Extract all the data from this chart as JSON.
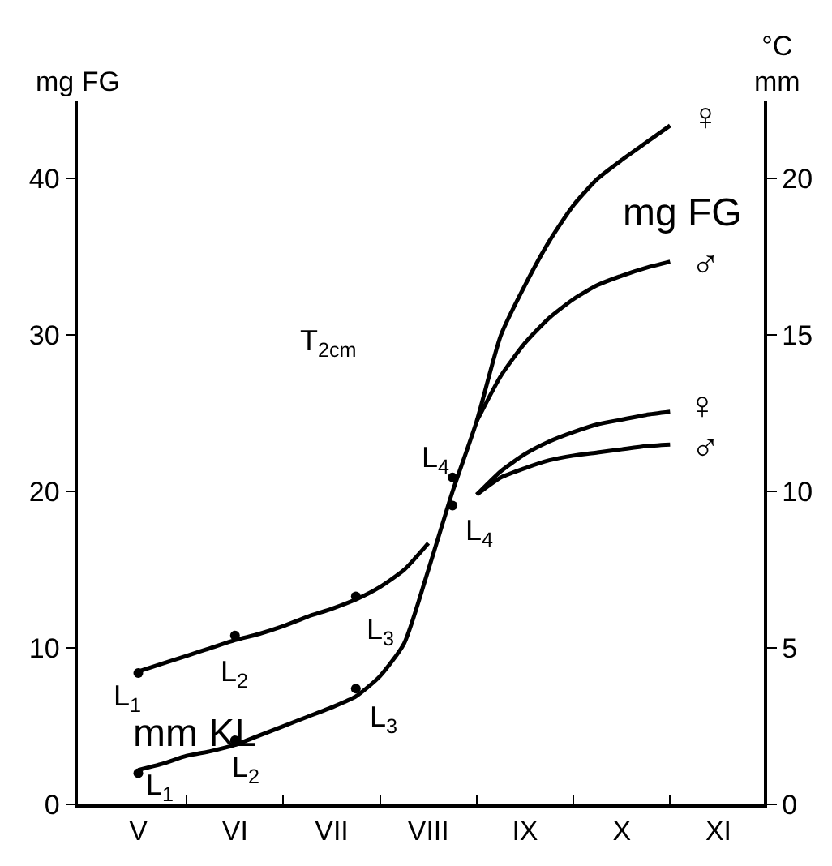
{
  "chart_data": {
    "type": "line",
    "ylabel": "mg FG",
    "y2label": "°C\nmm",
    "categories": [
      null,
      "V",
      null,
      null,
      null,
      "VI",
      null,
      null,
      null,
      "VII",
      null,
      null,
      null,
      "VIII",
      null,
      null,
      null,
      "IX",
      null,
      null,
      null,
      "X",
      null,
      null,
      null,
      "XI",
      null
    ],
    "ylim": [
      0,
      45
    ],
    "yticks": [
      0,
      10,
      20,
      30,
      40
    ],
    "y2lim": [
      0,
      22.5
    ],
    "y2ticks": [
      0,
      5,
      10,
      15,
      20
    ],
    "series": [
      {
        "axis": "y2",
        "color": "#000000",
        "values": [
          null,
          4.25,
          4.5,
          4.75,
          5.0,
          5.25,
          5.45,
          5.7,
          6.0,
          6.25,
          6.55,
          6.95,
          7.5,
          8.35,
          null,
          null,
          null,
          null,
          null,
          null,
          null,
          null,
          null,
          null,
          null,
          null,
          null
        ]
      },
      {
        "color": "#000000",
        "values": [
          null,
          2.2,
          2.6,
          3.1,
          3.4,
          3.8,
          4.4,
          5.0,
          5.6,
          6.2,
          6.9,
          8.2,
          10.3,
          15.0,
          20.0,
          24.5,
          30.0,
          33.2,
          36.0,
          38.3,
          40.0,
          41.2,
          42.3,
          43.4,
          null,
          null,
          null
        ]
      },
      {
        "color": "#000000",
        "values": [
          null,
          null,
          null,
          null,
          null,
          null,
          null,
          null,
          null,
          null,
          null,
          null,
          null,
          null,
          null,
          24.5,
          27.4,
          29.5,
          31.1,
          32.3,
          33.2,
          33.8,
          34.3,
          34.7,
          null,
          null,
          null
        ]
      },
      {
        "axis": "y2",
        "color": "#000000",
        "values": [
          null,
          null,
          null,
          null,
          null,
          null,
          null,
          null,
          null,
          null,
          null,
          null,
          null,
          null,
          null,
          9.9,
          10.65,
          11.2,
          11.6,
          11.9,
          12.15,
          12.3,
          12.45,
          12.55,
          null,
          null,
          null
        ]
      },
      {
        "axis": "y2",
        "color": "#000000",
        "values": [
          null,
          null,
          null,
          null,
          null,
          null,
          null,
          null,
          null,
          null,
          null,
          null,
          null,
          null,
          null,
          9.9,
          10.45,
          10.75,
          11.0,
          11.15,
          11.25,
          11.35,
          11.45,
          11.5,
          null,
          null,
          null
        ]
      },
      {
        "type": "scatter",
        "marker": "circle",
        "color": "#000000",
        "values": [
          null,
          2.0,
          null,
          null,
          null,
          4.1,
          null,
          null,
          null,
          null,
          7.4,
          null,
          null,
          null,
          20.9,
          null,
          null,
          null,
          null,
          null,
          null,
          null,
          null,
          null,
          null,
          null,
          null
        ]
      },
      {
        "type": "scatter",
        "axis": "y2",
        "marker": "circle",
        "color": "#000000",
        "values": [
          null,
          4.2,
          null,
          null,
          null,
          5.4,
          null,
          null,
          null,
          null,
          6.65,
          null,
          null,
          null,
          9.55,
          null,
          null,
          null,
          null,
          null,
          null,
          null,
          null,
          null,
          null,
          null,
          null
        ]
      }
    ],
    "marker": "none",
    "line_style": "solid",
    "annotations": [
      "L$_{1}$",
      "L$_{2}$",
      "L$_{3}$",
      "mm KL",
      "L$_{1}$",
      "L$_{2}$",
      "L$_{3}$",
      "L$_{4}$",
      "L$_{4}$",
      "T$_{2cm}$",
      "mg FG",
      "♀",
      "♂",
      "♀",
      "♂"
    ]
  }
}
